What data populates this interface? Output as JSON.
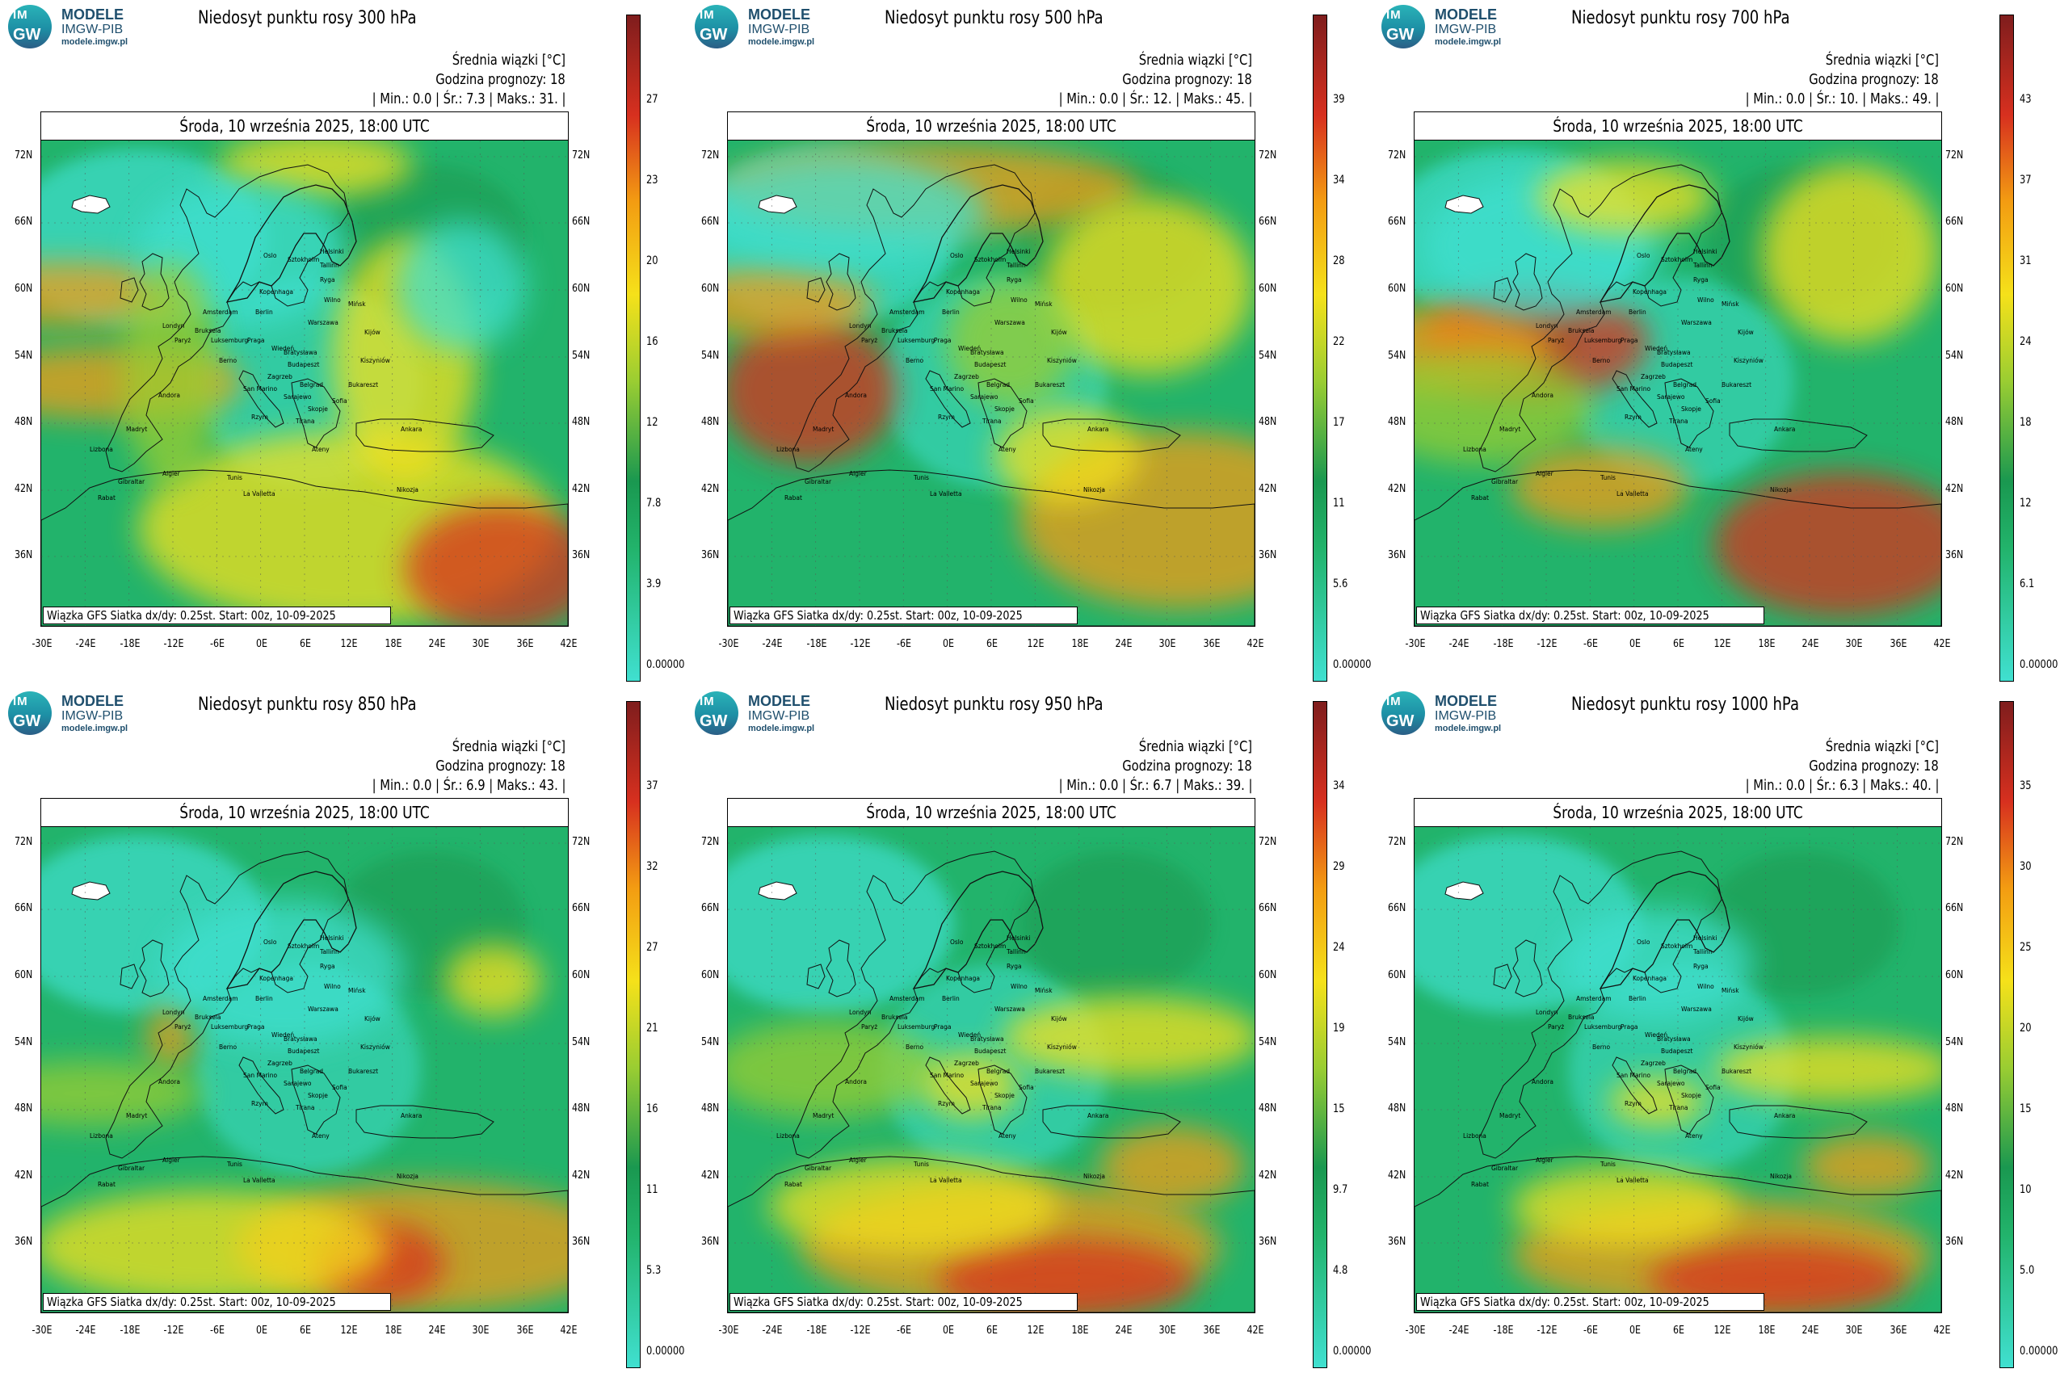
{
  "logo": {
    "im": "IM",
    "gw": "GW",
    "line1": "MODELE",
    "line2": "IMGW-PIB",
    "line3": "modele.imgw.pl"
  },
  "common": {
    "legend_title": "Średnia wiązki [°C]",
    "forecast_hour": "Godzina prognozy: 18",
    "date_header": "Środa, 10 września 2025, 18:00 UTC",
    "footer": "Wiązka GFS Siatka dx/dy: 0.25st. Start: 00z, 10-09-2025",
    "lat_labels": [
      "72N",
      "66N",
      "60N",
      "54N",
      "48N",
      "42N",
      "36N"
    ],
    "lon_labels": [
      "-30E",
      "-24E",
      "-18E",
      "-12E",
      "-6E",
      "0E",
      "6E",
      "12E",
      "18E",
      "24E",
      "30E",
      "36E",
      "42E"
    ],
    "colors": {
      "cyan": "#40e0d0",
      "green": "#22b36b",
      "dark_green": "#1a9850",
      "lime": "#9acd32",
      "yellow": "#f5e11a",
      "orange": "#f39c12",
      "red": "#d7301f",
      "dark_red": "#7f1d1d"
    }
  },
  "panels": [
    {
      "title": "Niedosyt punktu rosy 300 hPa",
      "stats": "| Min.:   0.0 | Śr.:   7.3 | Maks.:   31. |",
      "colorbar_ticks": [
        "27",
        "23",
        "20",
        "16",
        "12",
        "7.8",
        "3.9",
        "0.00000"
      ],
      "dryness": 0.55
    },
    {
      "title": "Niedosyt punktu rosy 500 hPa",
      "stats": "| Min.:   0.0 | Śr.:   12. | Maks.:   45. |",
      "colorbar_ticks": [
        "39",
        "34",
        "28",
        "22",
        "17",
        "11",
        "5.6",
        "0.00000"
      ],
      "dryness": 0.7
    },
    {
      "title": "Niedosyt punktu rosy 700 hPa",
      "stats": "| Min.:   0.0 | Śr.:   10. | Maks.:   49. |",
      "colorbar_ticks": [
        "43",
        "37",
        "31",
        "24",
        "18",
        "12",
        "6.1",
        "0.00000"
      ],
      "dryness": 0.5
    },
    {
      "title": "Niedosyt punktu rosy 850 hPa",
      "stats": "| Min.:   0.0 | Śr.:   6.9 | Maks.:   43. |",
      "colorbar_ticks": [
        "37",
        "32",
        "27",
        "21",
        "16",
        "11",
        "5.3",
        "0.00000"
      ],
      "dryness": 0.25
    },
    {
      "title": "Niedosyt punktu rosy 950 hPa",
      "stats": "| Min.:   0.0 | Śr.:   6.7 | Maks.:   39. |",
      "colorbar_ticks": [
        "34",
        "29",
        "24",
        "19",
        "15",
        "9.7",
        "4.8",
        "0.00000"
      ],
      "dryness": 0.3
    },
    {
      "title": "Niedosyt punktu rosy 1000 hPa",
      "stats": "| Min.:   0.0 | Śr.:   6.3 | Maks.:   40. |",
      "colorbar_ticks": [
        "35",
        "30",
        "25",
        "20",
        "15",
        "10",
        "5.0",
        "0.00000"
      ],
      "dryness": 0.3
    }
  ],
  "cities": [
    "Oslo",
    "Helsinki",
    "Sztokholm",
    "Tallinn",
    "Ryga",
    "Kopenhaga",
    "Wilno",
    "Mińsk",
    "Amsterdam",
    "Berlin",
    "Warszawa",
    "Londyn",
    "Bruksela",
    "Luksemburg",
    "Paryż",
    "Praga",
    "Kijów",
    "Wiedeń",
    "Bratysława",
    "Kiszyniów",
    "Budapeszt",
    "Berno",
    "Zagrzeb",
    "Belgrad",
    "Bukareszt",
    "San Marino",
    "Sarajewo",
    "Andora",
    "Rzym",
    "Skopje",
    "Tirana",
    "Ateny",
    "Sofia",
    "Ankara",
    "Madryt",
    "Lizbona",
    "Gibraltar",
    "Algier",
    "Tunis",
    "La Valletta",
    "Nikozja",
    "Rabat"
  ]
}
